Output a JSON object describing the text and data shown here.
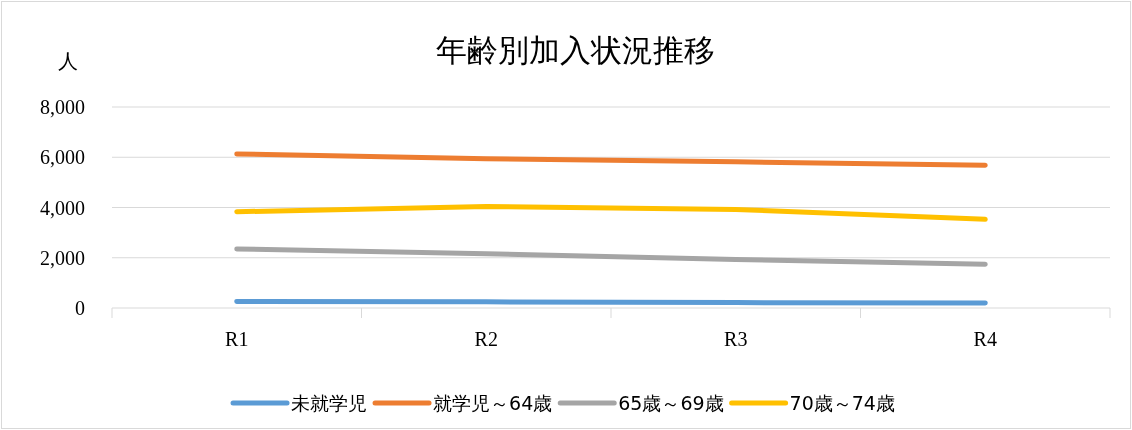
{
  "chart_data": {
    "type": "line",
    "title": "年齢別加入状況推移",
    "ylabel": "人",
    "categories": [
      "R1",
      "R2",
      "R3",
      "R4"
    ],
    "series": [
      {
        "name": "未就学児",
        "color": "#5b9bd5",
        "values": [
          260,
          245,
          215,
          200
        ]
      },
      {
        "name": "就学児～64歳",
        "color": "#ed7d31",
        "values": [
          6130,
          5940,
          5820,
          5680
        ]
      },
      {
        "name": "65歳～69歳",
        "color": "#a5a5a5",
        "values": [
          2350,
          2160,
          1930,
          1740
        ]
      },
      {
        "name": "70歳～74歳",
        "color": "#ffc000",
        "values": [
          3830,
          4040,
          3920,
          3530
        ]
      }
    ],
    "ylim": [
      0,
      8000
    ],
    "yticks": [
      {
        "value": 0,
        "label": "0"
      },
      {
        "value": 2000,
        "label": "2,000"
      },
      {
        "value": 4000,
        "label": "4,000"
      },
      {
        "value": 6000,
        "label": "6,000"
      },
      {
        "value": 8000,
        "label": "8,000"
      }
    ],
    "grid": "y",
    "legend": "bottom",
    "marker": "none",
    "line_style": "solid"
  }
}
